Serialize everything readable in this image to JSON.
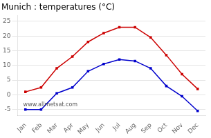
{
  "chart_data": {
    "type": "line",
    "title": "Munich : temperatures (°C)",
    "categories": [
      "Jan",
      "Feb",
      "Mar",
      "Apr",
      "May",
      "Jun",
      "Jul",
      "Aug",
      "Sep",
      "Oct",
      "Nov",
      "Dec"
    ],
    "series": [
      {
        "color": "#cc0000",
        "marker": "square",
        "values": [
          1,
          2.5,
          9,
          13,
          18,
          21,
          23,
          23,
          19.5,
          13.5,
          7,
          2
        ]
      },
      {
        "color": "#0000cc",
        "marker": "square",
        "values": [
          -5,
          -5,
          0.5,
          2.5,
          8,
          10.5,
          12,
          11.5,
          9,
          3,
          -0.5,
          -5.5
        ]
      }
    ],
    "ylim": [
      -7,
      27
    ],
    "yticks": [
      -5,
      0,
      5,
      10,
      15,
      20,
      25
    ],
    "grid": true,
    "annotations": [
      "www.allmetsat.com"
    ]
  }
}
